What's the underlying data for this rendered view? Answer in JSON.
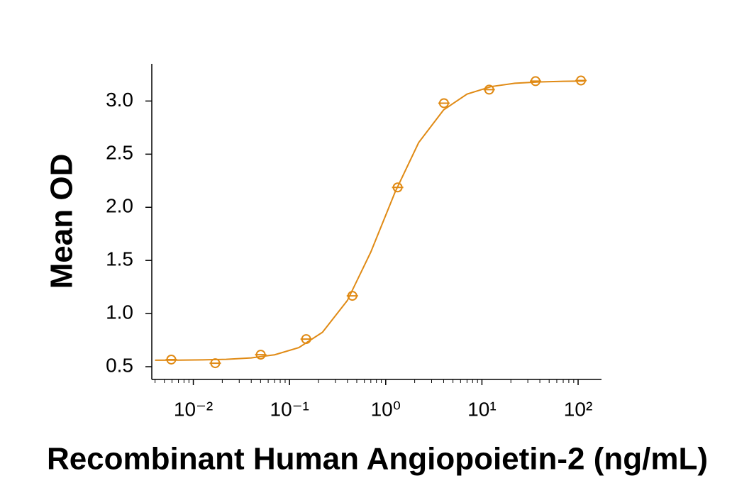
{
  "chart_data": {
    "type": "scatter",
    "xlabel": "Recombinant Human Angiopoietin-2 (ng/mL)",
    "ylabel": "Mean OD",
    "color": "#e08a14",
    "xscale": "log",
    "xlim": [
      0.0037,
      175
    ],
    "xticks": [
      {
        "value": 0.01,
        "label": "10⁻²"
      },
      {
        "value": 0.1,
        "label": "10⁻¹"
      },
      {
        "value": 1,
        "label": "10⁰"
      },
      {
        "value": 10,
        "label": "10¹"
      },
      {
        "value": 100,
        "label": "10²"
      }
    ],
    "xminorticks": [
      0.004,
      0.005,
      0.006,
      0.007,
      0.008,
      0.009,
      0.02,
      0.03,
      0.04,
      0.05,
      0.06,
      0.07,
      0.08,
      0.09,
      0.2,
      0.3,
      0.4,
      0.5,
      0.6,
      0.7,
      0.8,
      0.9,
      2,
      3,
      4,
      5,
      6,
      7,
      8,
      9,
      20,
      30,
      40,
      50,
      60,
      70,
      80,
      90
    ],
    "ylim": [
      0.38,
      3.35
    ],
    "yticks": [
      0.5,
      {
        "value": 1,
        "label": "1.0"
      },
      1.5,
      {
        "value": 2,
        "label": "2.0"
      },
      2.5,
      {
        "value": 3,
        "label": "3.0"
      }
    ],
    "series": [
      {
        "type": "scatter",
        "x": [
          0.0059,
          0.0169,
          0.0502,
          0.149,
          0.45,
          1.33,
          4.03,
          11.9,
          36.1,
          107
        ],
        "values": [
          0.567,
          0.533,
          0.613,
          0.76,
          1.167,
          2.187,
          2.98,
          3.107,
          3.187,
          3.193
        ]
      },
      {
        "type": "line",
        "x": [
          0.004,
          0.007,
          0.0125,
          0.022,
          0.04,
          0.07,
          0.125,
          0.22,
          0.4,
          0.7,
          1.25,
          2.2,
          4,
          7,
          12.5,
          22,
          40,
          70,
          115
        ],
        "values": [
          0.561,
          0.562,
          0.564,
          0.569,
          0.583,
          0.612,
          0.68,
          0.824,
          1.124,
          1.579,
          2.142,
          2.609,
          2.917,
          3.065,
          3.136,
          3.167,
          3.18,
          3.186,
          3.188
        ]
      }
    ]
  }
}
